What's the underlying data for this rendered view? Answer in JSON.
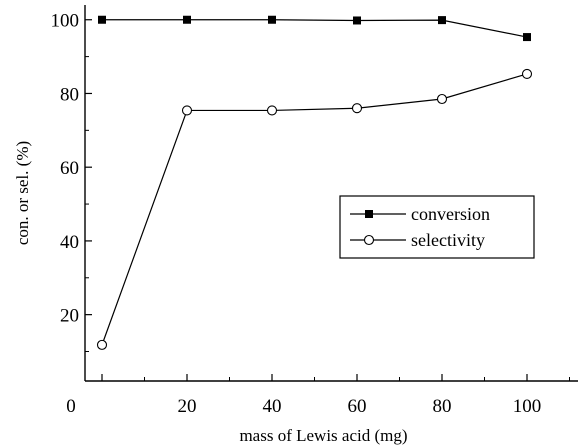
{
  "chart_data": {
    "type": "line",
    "xlabel": "mass of Lewis acid (mg)",
    "ylabel": "con. or sel. (%)",
    "xlim": [
      -4,
      112
    ],
    "ylim": [
      2,
      104
    ],
    "x_ticks": [
      0,
      20,
      40,
      60,
      80,
      100
    ],
    "y_ticks": [
      20,
      40,
      60,
      80,
      100
    ],
    "grid": false,
    "legend_position": "center-right",
    "series": [
      {
        "name": "conversion",
        "marker": "filled-square",
        "color": "#000000",
        "x": [
          0,
          20,
          40,
          60,
          80,
          100
        ],
        "y": [
          100,
          100,
          100,
          99.8,
          99.9,
          95.3
        ]
      },
      {
        "name": "selectivity",
        "marker": "open-circle",
        "color": "#000000",
        "x": [
          0,
          20,
          40,
          60,
          80,
          100
        ],
        "y": [
          11.8,
          75.4,
          75.4,
          76,
          78.5,
          85.3
        ]
      }
    ]
  }
}
